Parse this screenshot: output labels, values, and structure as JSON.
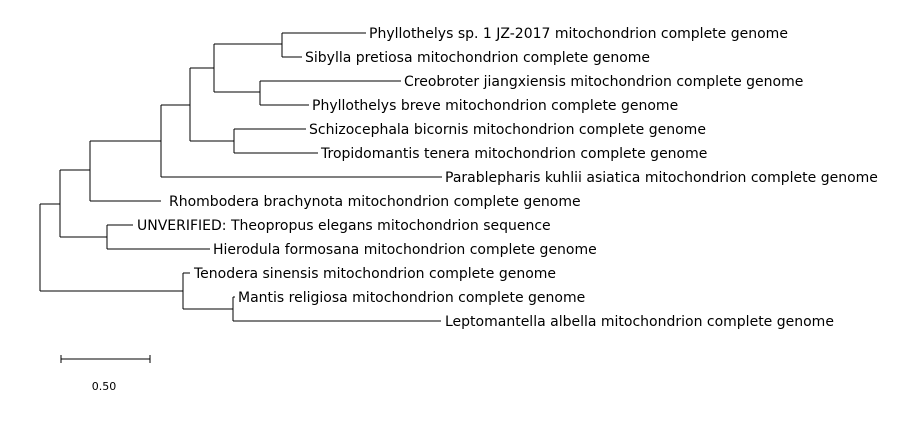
{
  "tree": {
    "taxa": [
      "Phyllothelys sp. 1 JZ-2017 mitochondrion complete genome",
      "Sibylla pretiosa mitochondrion complete genome",
      "Creobroter jiangxiensis mitochondrion complete genome",
      "Phyllothelys breve mitochondrion complete genome",
      "Schizocephala bicornis mitochondrion complete genome",
      "Tropidomantis tenera mitochondrion complete genome",
      "Parablepharis kuhlii asiatica mitochondrion complete genome",
      "Rhombodera brachynota mitochondrion complete genome",
      "UNVERIFIED: Theopropus elegans mitochondrion sequence",
      "Hierodula formosana mitochondrion complete genome",
      "Tenodera sinensis mitochondrion complete genome",
      "Mantis religiosa mitochondrion complete genome",
      "Leptomantella albella mitochondrion complete genome"
    ],
    "scale_bar": {
      "label": "0.50",
      "length": 0.5
    },
    "line_color": "#000000"
  }
}
